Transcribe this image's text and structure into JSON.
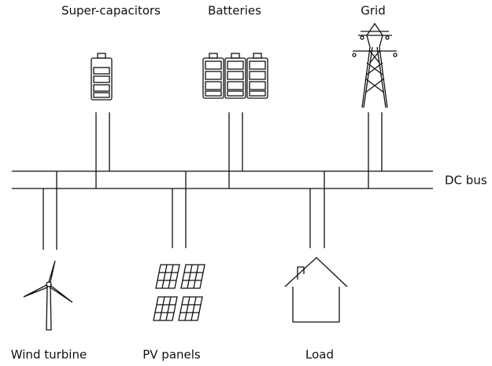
{
  "sources": [
    {
      "label": "Super-capacitors"
    },
    {
      "label": "Batteries"
    },
    {
      "label": "Grid"
    }
  ],
  "loads": [
    {
      "label": "Wind turbine"
    },
    {
      "label": "PV panels"
    },
    {
      "label": "Load"
    }
  ],
  "bus": {
    "label": "DC bus"
  }
}
